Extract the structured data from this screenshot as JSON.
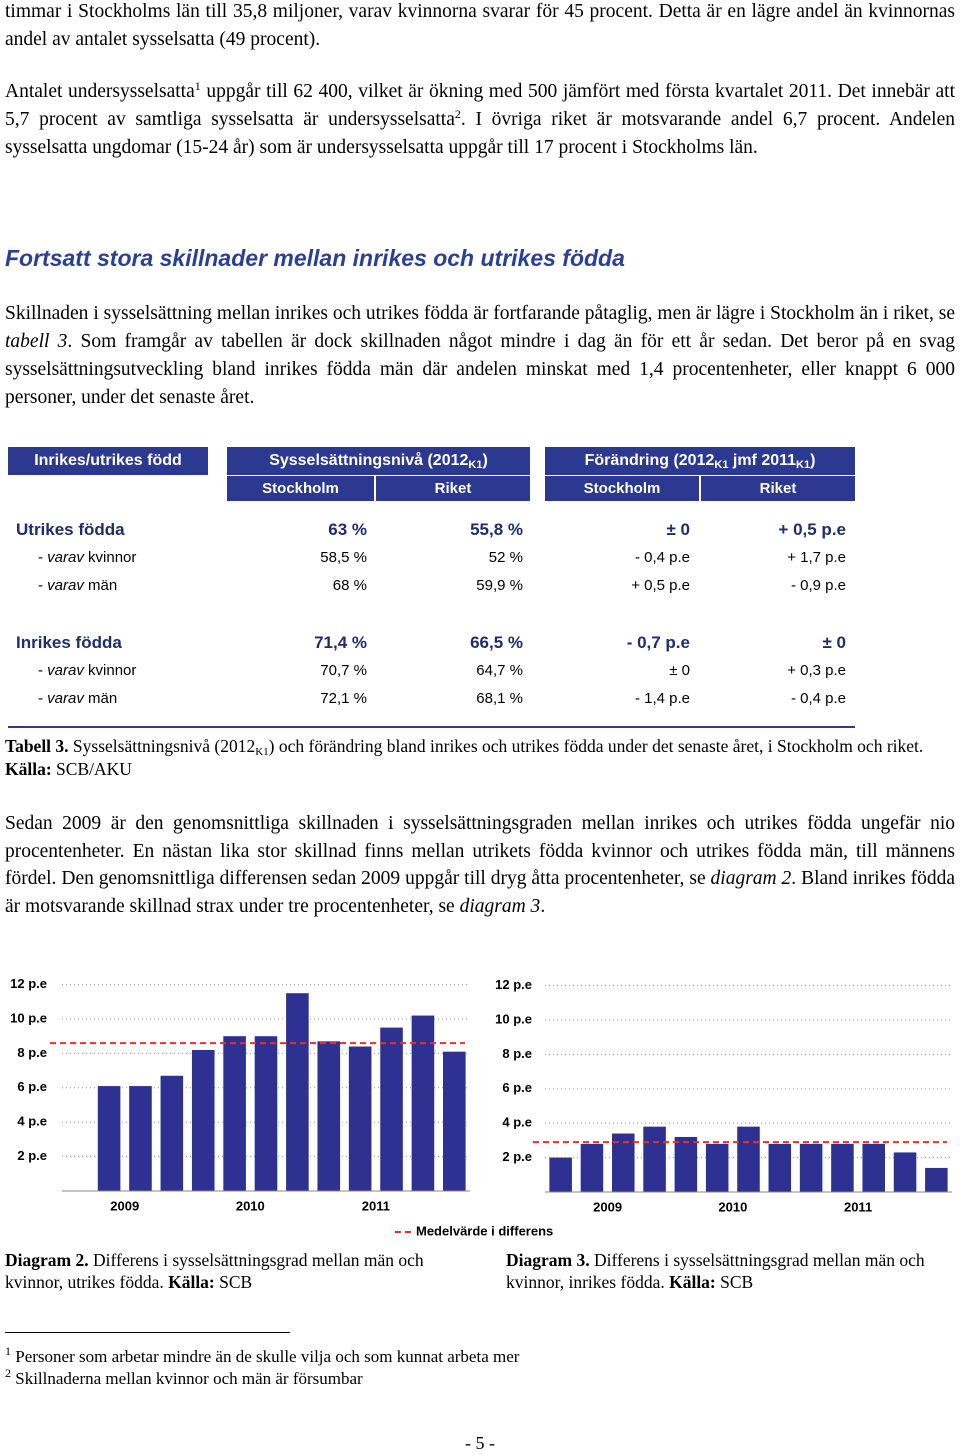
{
  "paragraphs": [
    [
      "timmar i Stockholms län till 35,8 miljoner, varav kvinnorna svarar för 45 procent. Detta är en lägre andel än kvinnornas andel av antalet sysselsatta (49 procent)."
    ],
    [
      "Antalet undersysselsatta",
      "1",
      " uppgår till 62 400, vilket är ökning med 500 jämfört med första kvartalet 2011. Det innebär att 5,7 procent av samtliga sysselsatta är undersysselsatta",
      "2",
      ". I övriga riket är motsvarande andel 6,7 procent. Andelen sysselsatta ungdomar (15-24 år) som är undersysselsatta uppgår till 17 procent i Stockholms län."
    ],
    [
      "Skillnaden i sysselsättning mellan inrikes och utrikes födda är fortfarande påtaglig, men är lägre i Stockholm än i riket, se ",
      "tabell 3",
      ". Som framgår av tabellen är dock skillnaden något mindre i dag än för ett år sedan. Det beror på en svag sysselsättningsutveckling bland inrikes födda män där andelen minskat med 1,4 procentenheter, eller knappt 6 000 personer, under det senaste året."
    ],
    [
      "Sedan 2009 är den genomsnittliga skillnaden i sysselsättningsgraden mellan inrikes och utrikes födda ungefär nio procentenheter. En nästan lika stor skillnad finns mellan utrikets födda kvinnor och utrikes födda män, till männens fördel. Den genomsnittliga differensen sedan 2009 uppgår till dryg åtta procentenheter, se ",
      "diagram 2",
      ". Bland inrikes födda är motsvarande skillnad strax under tre procentenheter, se ",
      "diagram 3",
      "."
    ]
  ],
  "heading": "Fortsatt stora skillnader mellan inrikes och utrikes födda",
  "table": {
    "header": [
      [
        "Inrikes/utrikes född"
      ],
      [
        "Sysselsättningsnivå (2012",
        "K1",
        ")"
      ],
      [
        "Förändring (2012",
        "K1",
        " jmf 2011",
        "K1",
        ")"
      ]
    ],
    "subheader": [
      "Stockholm",
      "Riket",
      "Stockholm",
      "Riket"
    ],
    "rows": [
      {
        "label": [
          "Utrikes födda"
        ],
        "cells": [
          "63 %",
          "55,8 %",
          "± 0",
          "+ 0,5 p.e"
        ]
      },
      {
        "label": [
          "- ",
          "varav",
          " kvinnor"
        ],
        "cells": [
          "58,5 %",
          "52 %",
          "- 0,4 p.e",
          "+ 1,7 p.e"
        ]
      },
      {
        "label": [
          "- ",
          "varav",
          " män"
        ],
        "cells": [
          "68 %",
          "59,9 %",
          "+ 0,5 p.e",
          "- 0,9 p.e"
        ]
      },
      {
        "label": [
          "Inrikes födda"
        ],
        "cells": [
          "71,4 %",
          "66,5 %",
          "- 0,7 p.e",
          "± 0"
        ]
      },
      {
        "label": [
          "- ",
          "varav",
          " kvinnor"
        ],
        "cells": [
          "70,7 %",
          "64,7 %",
          "± 0",
          "+ 0,3 p.e"
        ]
      },
      {
        "label": [
          "- ",
          "varav",
          " män"
        ],
        "cells": [
          "72,1 %",
          "68,1 %",
          "- 1,4 p.e",
          "- 0,4 p.e"
        ]
      }
    ],
    "caption": [
      "Tabell 3.",
      " Sysselsättningsnivå (2012",
      "K1",
      ") och förändring bland inrikes och utrikes födda under det senaste året, i Stockholm och riket. ",
      "Källa:",
      " SCB/AKU"
    ]
  },
  "chart_data": [
    {
      "type": "bar",
      "color": "#2e3192",
      "caption": [
        "Diagram 2.",
        " Differens i sysselsättningsgrad mellan män och kvinnor, utrikes födda. ",
        "Källa:",
        " SCB"
      ],
      "categories": [
        "2009",
        null,
        null,
        null,
        "2010",
        null,
        null,
        null,
        "2011",
        null,
        null,
        null,
        null
      ],
      "values": [
        null,
        6.1,
        6.1,
        6.7,
        8.2,
        9.0,
        9.0,
        11.5,
        8.7,
        8.4,
        9.5,
        10.2,
        8.1
      ],
      "mean": 8.6,
      "ylim": [
        0,
        12.5
      ],
      "yticks": [
        {
          "value": 2,
          "label": "2 p.e"
        },
        {
          "value": 4,
          "label": "4 p.e"
        },
        {
          "value": 6,
          "label": "6 p.e"
        },
        {
          "value": 8,
          "label": "8 p.e"
        },
        {
          "value": 10,
          "label": "10 p.e"
        },
        {
          "value": 12,
          "label": "12 p.e"
        }
      ],
      "grid": true
    },
    {
      "type": "bar",
      "color": "#2e3192",
      "caption": [
        "Diagram 3.",
        " Differens i sysselsättningsgrad mellan män och kvinnor, inrikes födda. ",
        "Källa:",
        " SCB"
      ],
      "categories": [
        "2009",
        null,
        null,
        null,
        "2010",
        null,
        null,
        null,
        "2011",
        null,
        null,
        null,
        null
      ],
      "values": [
        2.0,
        2.8,
        3.4,
        3.8,
        3.2,
        2.8,
        3.8,
        2.8,
        2.8,
        2.8,
        2.8,
        2.3,
        1.4
      ],
      "mean": 2.9,
      "ylim": [
        0,
        12.5
      ],
      "yticks": [
        {
          "value": 2,
          "label": "2 p.e"
        },
        {
          "value": 4,
          "label": "4 p.e"
        },
        {
          "value": 6,
          "label": "6 p.e"
        },
        {
          "value": 8,
          "label": "8 p.e"
        },
        {
          "value": 10,
          "label": "10 p.e"
        },
        {
          "value": 12,
          "label": "12 p.e"
        }
      ],
      "grid": true
    }
  ],
  "legend": {
    "name": "Medelvärde i differens",
    "color": "#e8302a"
  },
  "footnotes": [
    [
      "1",
      " Personer som arbetar mindre än de skulle vilja och som kunnat arbeta mer"
    ],
    [
      "2",
      " Skillnaderna mellan kvinnor och män är försumbar"
    ]
  ],
  "page_number": "- 5 -"
}
